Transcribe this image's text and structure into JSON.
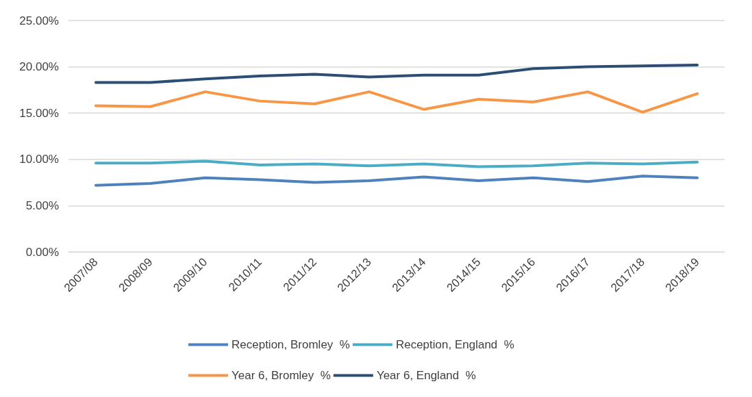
{
  "chart_data": {
    "type": "line",
    "categories": [
      "2007/08",
      "2008/09",
      "2009/10",
      "2010/11",
      "2011/12",
      "2012/13",
      "2013/14",
      "2014/15",
      "2015/16",
      "2016/17",
      "2017/18",
      "2018/19"
    ],
    "series": [
      {
        "name": "Reception, Bromley  %",
        "color": "#4f81bd",
        "values": [
          7.2,
          7.4,
          8.0,
          7.8,
          7.5,
          7.7,
          8.1,
          7.7,
          8.0,
          7.6,
          8.2,
          8.0
        ]
      },
      {
        "name": "Reception, England  %",
        "color": "#4bacc6",
        "values": [
          9.6,
          9.6,
          9.8,
          9.4,
          9.5,
          9.3,
          9.5,
          9.2,
          9.3,
          9.6,
          9.5,
          9.7
        ]
      },
      {
        "name": "Year 6, Bromley  %",
        "color": "#f79646",
        "values": [
          15.8,
          15.7,
          17.3,
          16.3,
          16.0,
          17.3,
          15.4,
          16.5,
          16.2,
          17.3,
          15.1,
          17.1
        ]
      },
      {
        "name": "Year 6, England  %",
        "color": "#2c4d75",
        "values": [
          18.3,
          18.3,
          18.7,
          19.0,
          19.2,
          18.9,
          19.1,
          19.1,
          19.8,
          20.0,
          20.1,
          20.2
        ]
      }
    ],
    "ylim": [
      0,
      25
    ],
    "yticks": [
      {
        "value": 0,
        "label": "0.00%"
      },
      {
        "value": 5,
        "label": "5.00%"
      },
      {
        "value": 10,
        "label": "10.00%"
      },
      {
        "value": 15,
        "label": "15.00%"
      },
      {
        "value": 20,
        "label": "20.00%"
      },
      {
        "value": 25,
        "label": "25.00%"
      }
    ],
    "grid": "y",
    "legend": "bottom",
    "marker": "none",
    "line_style": "solid"
  }
}
